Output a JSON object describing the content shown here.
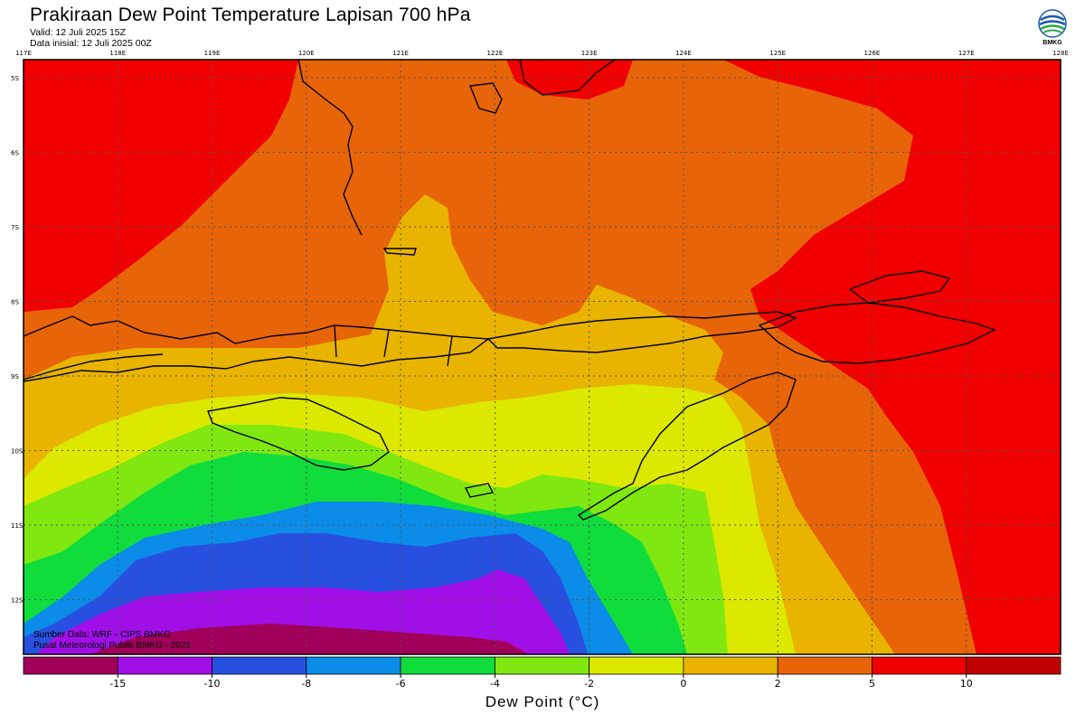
{
  "header": {
    "title": "Prakiraan Dew Point Temperature Lapisan 700 hPa",
    "valid": "Valid: 12 Juli 2025 15Z",
    "init": "Data inisial: 12 Juli 2025 00Z"
  },
  "logo": {
    "text": "BMKG",
    "icon": "bmkg-logo-icon"
  },
  "map": {
    "lon_labels": [
      "117E",
      "118E",
      "119E",
      "120E",
      "121E",
      "122E",
      "123E",
      "124E",
      "125E",
      "126E",
      "127E",
      "128E"
    ],
    "lat_labels": [
      "5S",
      "6S",
      "7S",
      "8S",
      "9S",
      "10S",
      "11S",
      "12S"
    ],
    "variable": "Dew Point Temperature",
    "level": "700 hPa"
  },
  "credits": {
    "line1": "Sumber Data: WRF - CIPS BMKG",
    "line2": "Pusat Meteorologi Publik BMKG - 2021"
  },
  "colorbar": {
    "title": "Dew Point (°C)",
    "tick_labels": [
      "-15",
      "-10",
      "-8",
      "-6",
      "-4",
      "-2",
      "0",
      "2",
      "5",
      "10"
    ],
    "colors": [
      "#a0005a",
      "#a010e6",
      "#2850e0",
      "#0a8ce8",
      "#10dc3c",
      "#80e810",
      "#dce800",
      "#e8b400",
      "#e86408",
      "#f00000",
      "#c00000"
    ]
  }
}
